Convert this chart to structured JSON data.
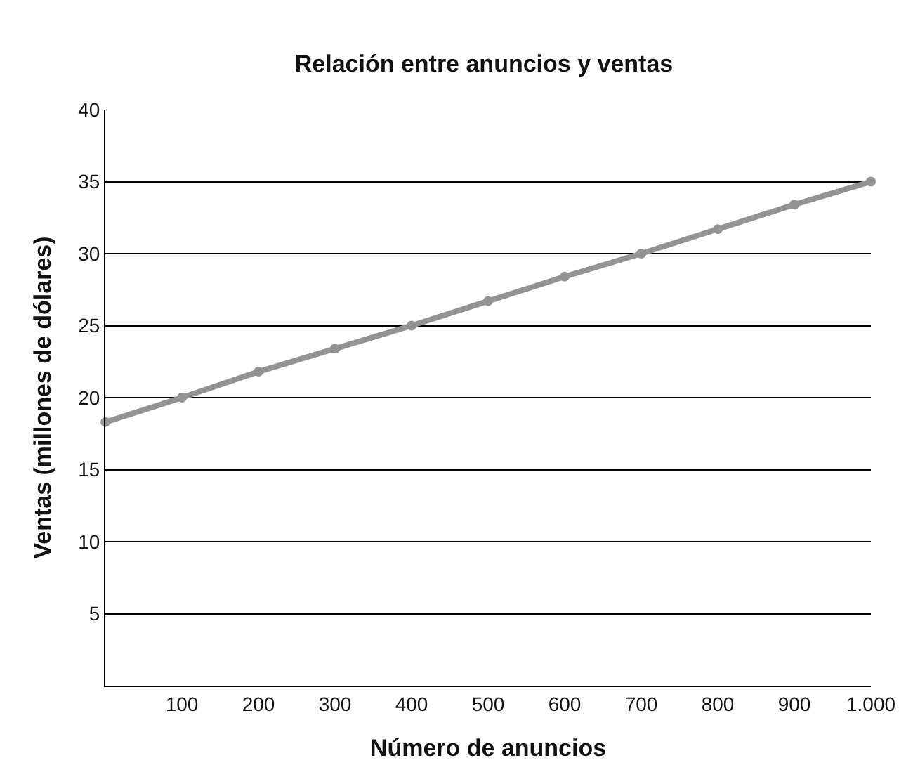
{
  "chart_data": {
    "type": "line",
    "title": "Relación entre anuncios y ventas",
    "xlabel": "Número de anuncios",
    "ylabel": "Ventas (millones de dólares)",
    "x": [
      0,
      100,
      200,
      300,
      400,
      500,
      600,
      700,
      800,
      900,
      1000
    ],
    "series": [
      {
        "color": "#939393",
        "values": [
          18.3,
          20,
          21.8,
          23.4,
          25,
          26.7,
          28.4,
          30,
          31.7,
          33.4,
          35
        ]
      }
    ],
    "xlim": [
      0,
      1000
    ],
    "xticks": [
      100,
      200,
      300,
      400,
      500,
      600,
      700,
      800,
      900,
      {
        "value": 1000,
        "label": "1.000"
      }
    ],
    "ylim": [
      0,
      40
    ],
    "yticks": [
      5,
      10,
      15,
      20,
      25,
      30,
      35,
      40
    ],
    "grid": "y",
    "legend": false,
    "marker": "circle",
    "line_style": "solid"
  }
}
